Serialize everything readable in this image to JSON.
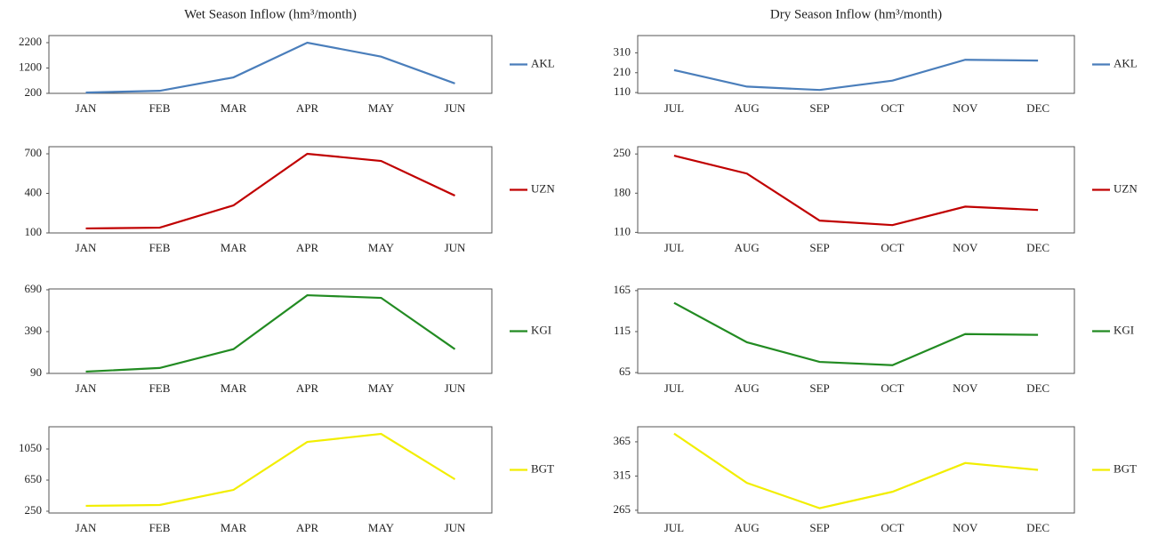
{
  "chart_data": [
    {
      "type": "line",
      "title": "Wet Season Inflow (hm³/month)",
      "categories": [
        "JAN",
        "FEB",
        "MAR",
        "APR",
        "MAY",
        "JUN"
      ],
      "series": [
        {
          "name": "AKL",
          "color": "#4a7ebb",
          "values": [
            230,
            300,
            830,
            2200,
            1650,
            590
          ]
        }
      ],
      "ylim": [
        200,
        2480
      ],
      "yticks": [
        200,
        1200,
        2200
      ]
    },
    {
      "type": "line",
      "title": "Dry Season Inflow (hm³/month)",
      "categories": [
        "JUL",
        "AUG",
        "SEP",
        "OCT",
        "NOV",
        "DEC"
      ],
      "series": [
        {
          "name": "AKL",
          "color": "#4a7ebb",
          "values": [
            223,
            140,
            123,
            170,
            275,
            271
          ]
        }
      ],
      "ylim": [
        106,
        397
      ],
      "yticks": [
        110,
        210,
        310
      ]
    },
    {
      "type": "line",
      "categories": [
        "JAN",
        "FEB",
        "MAR",
        "APR",
        "MAY",
        "JUN"
      ],
      "series": [
        {
          "name": "UZN",
          "color": "#c00000",
          "values": [
            134,
            140,
            309,
            700,
            646,
            383
          ]
        }
      ],
      "ylim": [
        100,
        754
      ],
      "yticks": [
        100,
        400,
        700
      ]
    },
    {
      "type": "line",
      "categories": [
        "JUL",
        "AUG",
        "SEP",
        "OCT",
        "NOV",
        "DEC"
      ],
      "series": [
        {
          "name": "UZN",
          "color": "#c00000",
          "values": [
            247,
            215,
            131,
            123,
            156,
            150
          ]
        }
      ],
      "ylim": [
        109,
        263
      ],
      "yticks": [
        110,
        180,
        250
      ]
    },
    {
      "type": "line",
      "categories": [
        "JAN",
        "FEB",
        "MAR",
        "APR",
        "MAY",
        "JUN"
      ],
      "series": [
        {
          "name": "KGI",
          "color": "#228b22",
          "values": [
            103,
            129,
            264,
            651,
            632,
            264
          ]
        }
      ],
      "ylim": [
        90,
        696
      ],
      "yticks": [
        90,
        390,
        690
      ]
    },
    {
      "type": "line",
      "categories": [
        "JUL",
        "AUG",
        "SEP",
        "OCT",
        "NOV",
        "DEC"
      ],
      "series": [
        {
          "name": "KGI",
          "color": "#228b22",
          "values": [
            150,
            102,
            78,
            74,
            112,
            111
          ]
        }
      ],
      "ylim": [
        64,
        167
      ],
      "yticks": [
        65,
        115,
        165
      ]
    },
    {
      "type": "line",
      "categories": [
        "JAN",
        "FEB",
        "MAR",
        "APR",
        "MAY",
        "JUN"
      ],
      "series": [
        {
          "name": "BGT",
          "color": "#f2ee00",
          "values": [
            319,
            330,
            524,
            1141,
            1244,
            661
          ]
        }
      ],
      "ylim": [
        227,
        1336
      ],
      "yticks": [
        250,
        650,
        1050
      ]
    },
    {
      "type": "line",
      "categories": [
        "JUL",
        "AUG",
        "SEP",
        "OCT",
        "NOV",
        "DEC"
      ],
      "series": [
        {
          "name": "BGT",
          "color": "#f2ee00",
          "values": [
            377,
            305,
            268,
            292,
            334,
            324
          ]
        }
      ],
      "ylim": [
        261,
        387
      ],
      "yticks": [
        265,
        315,
        365
      ]
    }
  ]
}
